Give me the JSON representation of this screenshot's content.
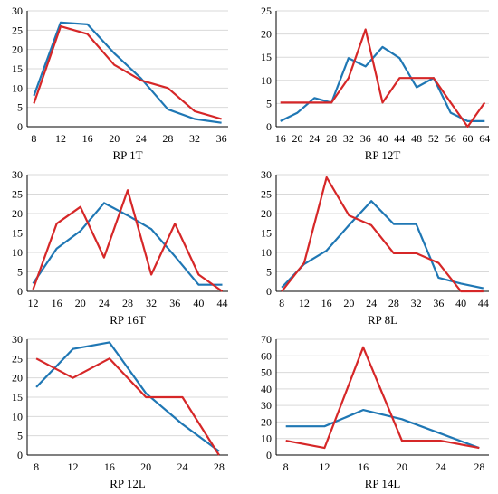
{
  "colors": {
    "series_blue": "#1f77b4",
    "series_red": "#d62728",
    "axis": "#000000",
    "grid": "#d9d9d9"
  },
  "chart_data": [
    {
      "type": "line",
      "title": "RP 1T",
      "x": [
        "8",
        "12",
        "16",
        "20",
        "24",
        "28",
        "32",
        "36"
      ],
      "ylim": [
        0,
        30
      ],
      "yticks": [
        0,
        5,
        10,
        15,
        20,
        25,
        30
      ],
      "grid": true,
      "series": [
        {
          "color": "#1f77b4",
          "values": [
            8,
            27,
            26.5,
            19,
            12.5,
            4.5,
            2,
            1
          ]
        },
        {
          "color": "#d62728",
          "values": [
            6,
            26,
            24,
            16,
            12,
            10,
            4,
            2
          ]
        }
      ]
    },
    {
      "type": "line",
      "title": "RP 12T",
      "x": [
        "16",
        "20",
        "24",
        "28",
        "32",
        "36",
        "40",
        "44",
        "48",
        "52",
        "56",
        "60",
        "64"
      ],
      "ylim": [
        0,
        25
      ],
      "yticks": [
        0,
        5,
        10,
        15,
        20,
        25
      ],
      "grid": true,
      "series": [
        {
          "color": "#1f77b4",
          "values": [
            1.2,
            3,
            6.2,
            5.2,
            14.8,
            13,
            17.2,
            14.8,
            8.5,
            10.5,
            3,
            1.2,
            1.2
          ]
        },
        {
          "color": "#d62728",
          "values": [
            5.2,
            5.2,
            5.2,
            5.2,
            10.5,
            21,
            5.2,
            10.5,
            10.5,
            10.5,
            5.2,
            0,
            5.2
          ]
        }
      ]
    },
    {
      "type": "line",
      "title": "RP 16T",
      "x": [
        "12",
        "16",
        "20",
        "24",
        "28",
        "32",
        "36",
        "40",
        "44"
      ],
      "ylim": [
        0,
        30
      ],
      "yticks": [
        0,
        5,
        10,
        15,
        20,
        25,
        30
      ],
      "grid": true,
      "series": [
        {
          "color": "#1f77b4",
          "values": [
            2,
            11,
            15.5,
            22.7,
            19.5,
            16,
            9,
            1.7,
            1.7
          ]
        },
        {
          "color": "#d62728",
          "values": [
            0.5,
            17.4,
            21.7,
            8.7,
            26,
            4.3,
            17.4,
            4.3,
            0
          ]
        }
      ]
    },
    {
      "type": "line",
      "title": "RP 8L",
      "x": [
        "8",
        "12",
        "16",
        "20",
        "24",
        "28",
        "32",
        "36",
        "40",
        "44"
      ],
      "ylim": [
        0,
        30
      ],
      "yticks": [
        0,
        5,
        10,
        15,
        20,
        25,
        30
      ],
      "grid": true,
      "series": [
        {
          "color": "#1f77b4",
          "values": [
            1,
            7,
            10.5,
            17,
            23.2,
            17.3,
            17.3,
            3.5,
            2,
            0.8
          ]
        },
        {
          "color": "#d62728",
          "values": [
            0,
            7.3,
            29.3,
            19.5,
            17,
            9.8,
            9.8,
            7.3,
            0,
            0
          ]
        }
      ]
    },
    {
      "type": "line",
      "title": "RP 12L",
      "x": [
        "8",
        "12",
        "16",
        "20",
        "24",
        "28"
      ],
      "ylim": [
        0,
        30
      ],
      "yticks": [
        0,
        5,
        10,
        15,
        20,
        25,
        30
      ],
      "grid": true,
      "series": [
        {
          "color": "#1f77b4",
          "values": [
            17.6,
            27.5,
            29.2,
            16,
            8,
            1
          ]
        },
        {
          "color": "#d62728",
          "values": [
            25,
            20,
            25,
            15,
            15,
            0
          ]
        }
      ]
    },
    {
      "type": "line",
      "title": "RP 14L",
      "x": [
        "8",
        "12",
        "16",
        "20",
        "24",
        "28"
      ],
      "ylim": [
        0,
        70
      ],
      "yticks": [
        0,
        10,
        20,
        30,
        40,
        50,
        60,
        70
      ],
      "grid": true,
      "series": [
        {
          "color": "#1f77b4",
          "values": [
            17.4,
            17.4,
            27.3,
            21.7,
            13,
            4.3
          ]
        },
        {
          "color": "#d62728",
          "values": [
            8.7,
            4.3,
            65.2,
            8.7,
            8.7,
            4.3
          ]
        }
      ]
    }
  ]
}
